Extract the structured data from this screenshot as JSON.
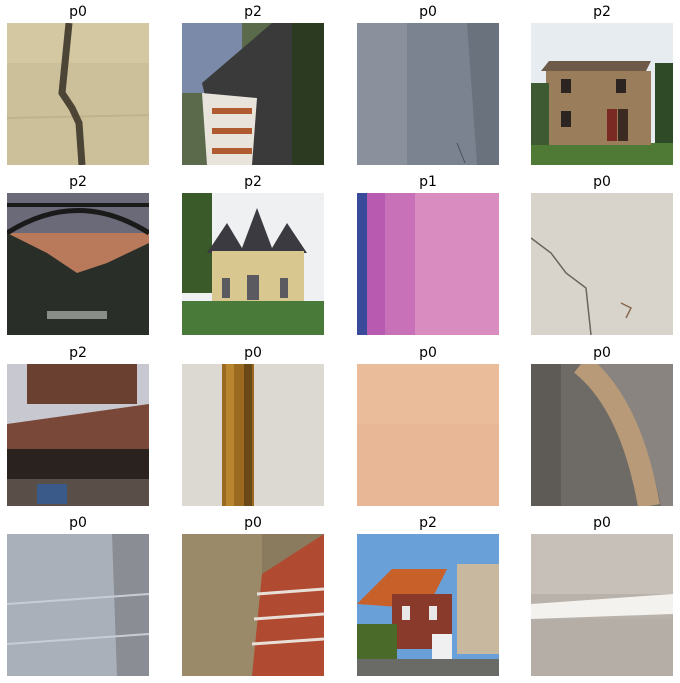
{
  "grid": {
    "tiles": [
      {
        "label": "p0"
      },
      {
        "label": "p2"
      },
      {
        "label": "p0"
      },
      {
        "label": "p2"
      },
      {
        "label": "p2"
      },
      {
        "label": "p2"
      },
      {
        "label": "p1"
      },
      {
        "label": "p0"
      },
      {
        "label": "p2"
      },
      {
        "label": "p0"
      },
      {
        "label": "p0"
      },
      {
        "label": "p0"
      },
      {
        "label": "p0"
      },
      {
        "label": "p0"
      },
      {
        "label": "p2"
      },
      {
        "label": "p0"
      }
    ]
  }
}
